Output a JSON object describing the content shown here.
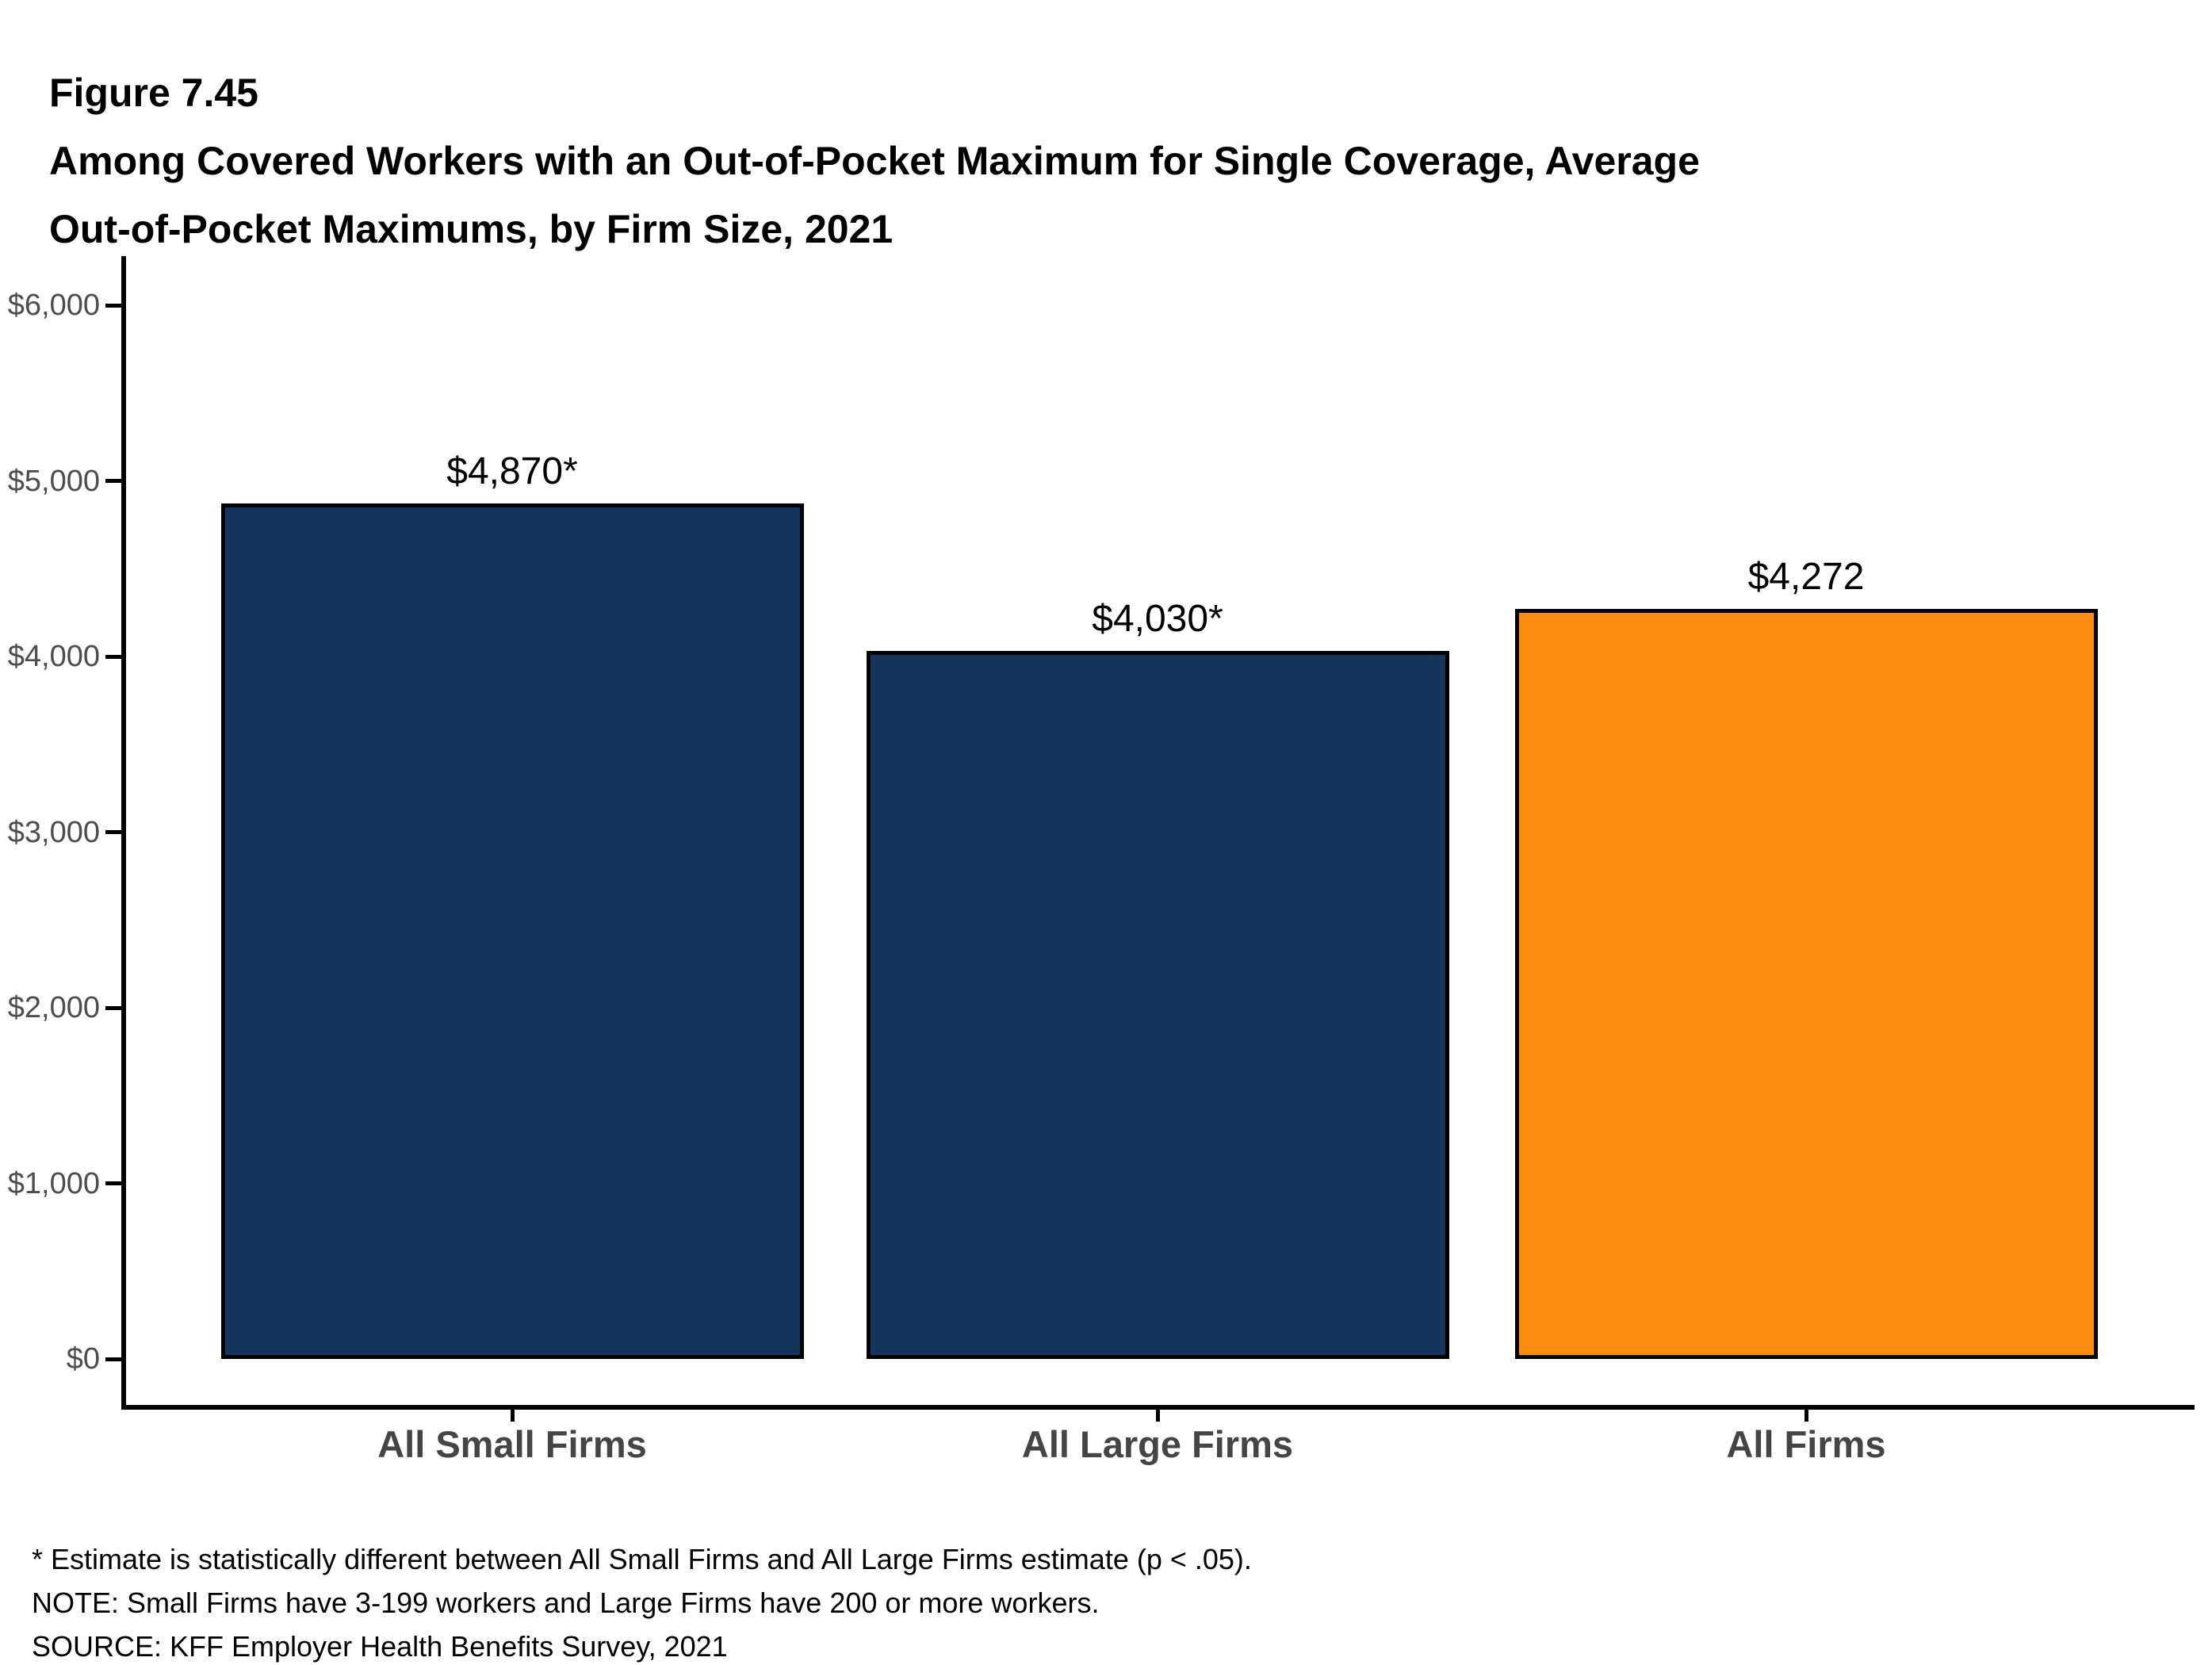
{
  "figure": {
    "number": "Figure 7.45",
    "title_line1": "Among Covered Workers with an Out-of-Pocket Maximum for Single Coverage, Average",
    "title_line2": "Out-of-Pocket Maximums, by Firm Size, 2021"
  },
  "chart_data": {
    "type": "bar",
    "title": "Among Covered Workers with an Out-of-Pocket Maximum for Single Coverage, Average Out-of-Pocket Maximums, by Firm Size, 2021",
    "categories": [
      "All Small Firms",
      "All Large Firms",
      "All Firms"
    ],
    "values": [
      4870,
      4030,
      4272
    ],
    "value_labels": [
      "$4,870*",
      "$4,030*",
      "$4,272"
    ],
    "bar_colors": [
      "#15355D",
      "#15355D",
      "#FD8D12"
    ],
    "bar_border_color": "#000000",
    "xlabel": "",
    "ylabel": "",
    "ylim": [
      0,
      6000
    ],
    "ytick_step": 1000,
    "ytick_labels": [
      "$0",
      "$1,000",
      "$2,000",
      "$3,000",
      "$4,000",
      "$5,000",
      "$6,000"
    ],
    "grid": false,
    "legend_position": "none",
    "axis_color": "#000000",
    "tick_label_color": "#4d4d4d",
    "category_label_color": "#454545"
  },
  "footnotes": [
    "* Estimate is statistically different between All Small Firms and All Large Firms estimate (p < .05).",
    "NOTE: Small Firms have 3-199 workers and Large Firms have 200 or more workers.",
    "SOURCE: KFF Employer Health Benefits Survey, 2021"
  ]
}
